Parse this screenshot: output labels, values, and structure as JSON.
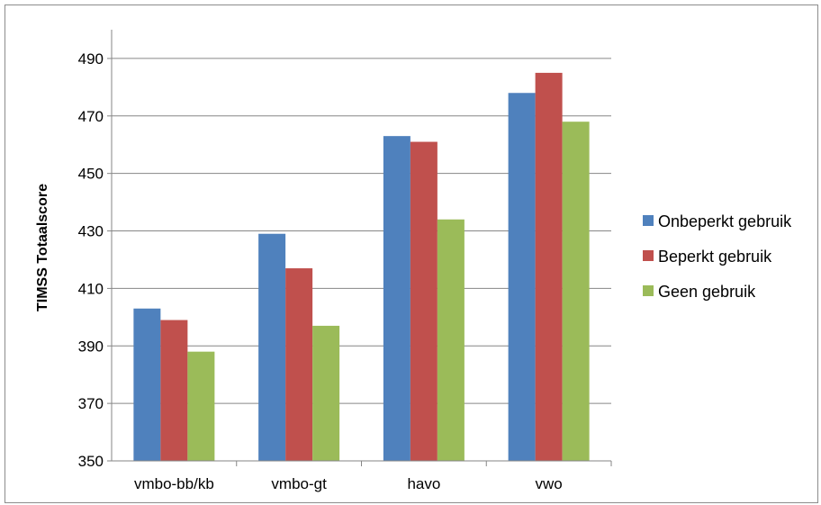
{
  "chart_data": {
    "type": "bar",
    "title": "",
    "xlabel": "",
    "ylabel": "TIMSS Totaalscore",
    "ylim": [
      350,
      500
    ],
    "yticks": [
      350,
      370,
      390,
      410,
      430,
      450,
      470,
      490
    ],
    "categories": [
      "vmbo-bb/kb",
      "vmbo-gt",
      "havo",
      "vwo"
    ],
    "series": [
      {
        "name": "Onbeperkt gebruik",
        "color": "#4f81bd",
        "values": [
          403,
          429,
          463,
          478
        ]
      },
      {
        "name": "Beperkt gebruik",
        "color": "#c0504d",
        "values": [
          399,
          417,
          461,
          485
        ]
      },
      {
        "name": "Geen gebruik",
        "color": "#9bbb59",
        "values": [
          388,
          397,
          434,
          468
        ]
      }
    ],
    "grid": true,
    "legend": "right"
  }
}
